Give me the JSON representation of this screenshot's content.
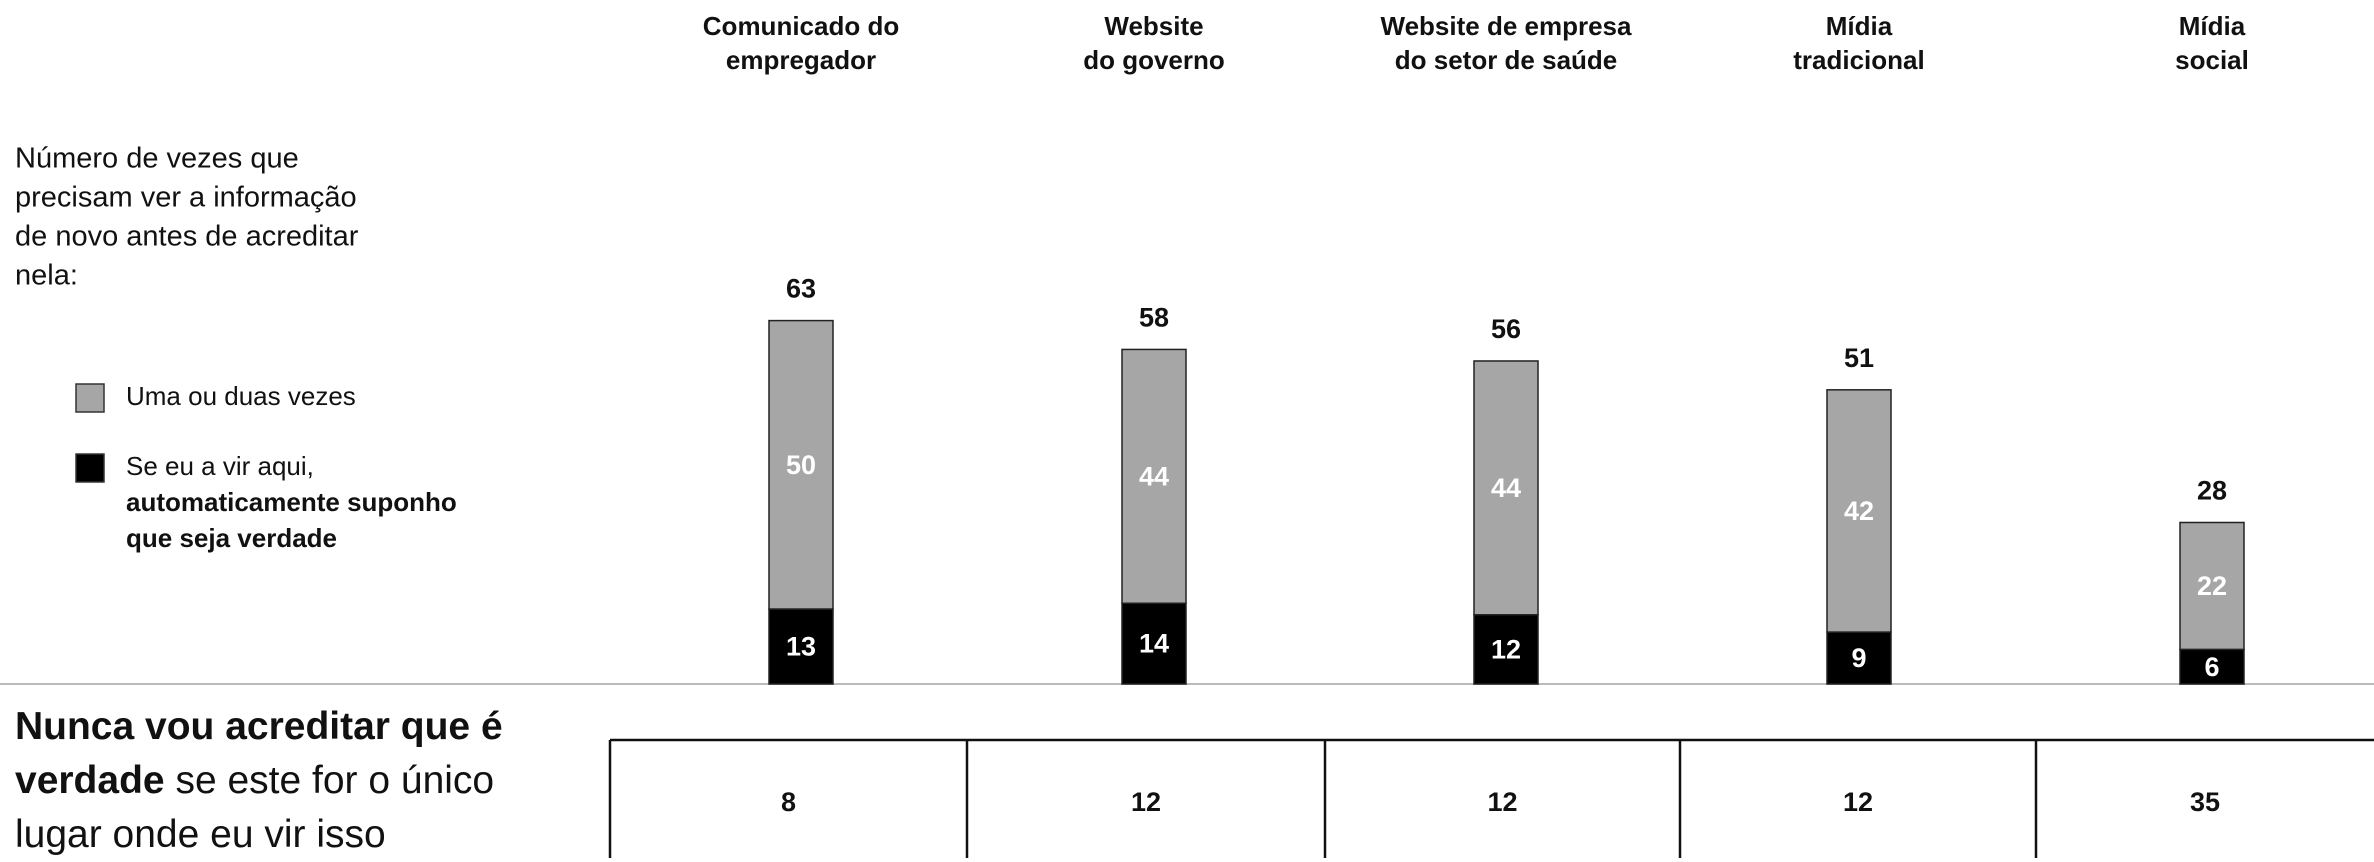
{
  "chart_data": {
    "type": "stacked_bar",
    "note": [
      "Número de vezes que",
      "precisam ver a informação",
      "de novo antes de acreditar",
      "nela:"
    ],
    "categories": [
      [
        "Comunicado do",
        "empregador"
      ],
      [
        "Website",
        "do governo"
      ],
      [
        "Website de empresa",
        "do setor de saúde"
      ],
      [
        "Mídia",
        "tradicional"
      ],
      [
        "Mídia",
        "social"
      ]
    ],
    "series": [
      {
        "name": [
          "Se eu a vir aqui,",
          "automaticamente suponho",
          "que seja verdade"
        ],
        "color": "#000000",
        "values": [
          13,
          14,
          12,
          9,
          6
        ]
      },
      {
        "name": [
          "Uma ou duas vezes"
        ],
        "color": "#a6a6a6",
        "values": [
          50,
          44,
          44,
          42,
          22
        ]
      }
    ],
    "totals": [
      63,
      58,
      56,
      51,
      28
    ],
    "footer": {
      "bold": "Nunca vou acreditar que é verdade",
      "rest": "se este for o único lugar onde eu vir isso",
      "values": [
        8,
        12,
        12,
        12,
        35
      ]
    }
  }
}
